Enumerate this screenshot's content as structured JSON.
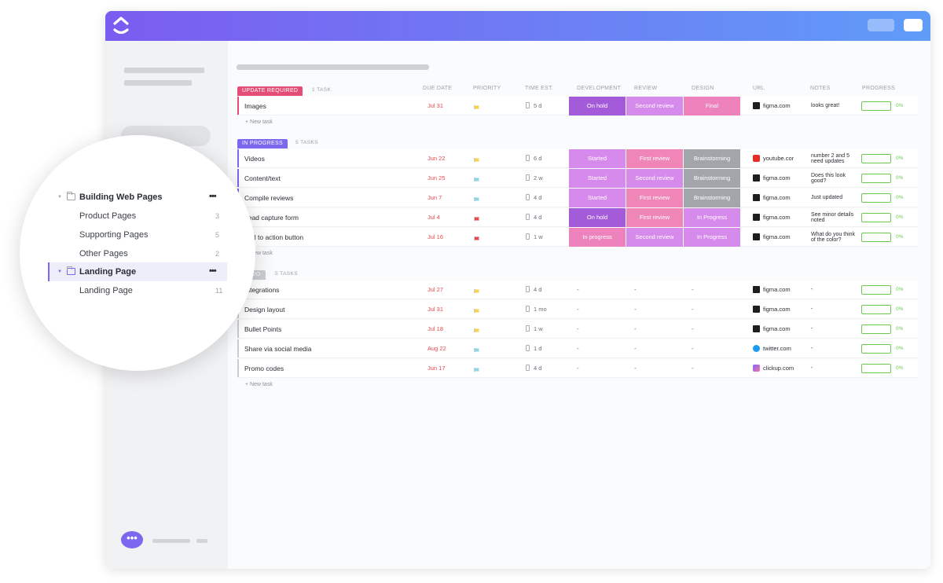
{
  "colors": {
    "topbar_gradient": [
      "#7b5cf0",
      "#5f9cf8"
    ],
    "update_required": "#e44d76",
    "in_progress": "#7b68ee",
    "progress_green": "#6bc950",
    "due_red": "#e5484d"
  },
  "columns": {
    "due_date": "DUE DATE",
    "priority": "PRIORITY",
    "time_est": "TIME EST.",
    "development": "DEVELOPMENT",
    "review": "REVIEW",
    "design": "DESIGN",
    "url": "URL",
    "notes": "NOTES",
    "progress": "PROGRESS"
  },
  "groups": [
    {
      "status": "UPDATE REQUIRED",
      "count": "1 TASK",
      "new_task": "+ New task",
      "tasks": [
        {
          "name": "Images",
          "due": "Jul 31",
          "flag": "yellow",
          "time": "5 d",
          "dev": "On hold",
          "review": "Second review",
          "design": "Final",
          "url": "figma.com",
          "url_icon": "figma-icon",
          "notes": "looks great!",
          "progress": "0%"
        }
      ]
    },
    {
      "status": "IN PROGRESS",
      "count": "5 TASKS",
      "new_task": "+ New task",
      "tasks": [
        {
          "name": "Videos",
          "due": "Jun 22",
          "flag": "yellow",
          "time": "6 d",
          "dev": "Started",
          "review": "First review",
          "design": "Brainstorming",
          "url": "youtube.cor",
          "url_icon": "youtube-icon",
          "notes": "number 2 and 5 need updates",
          "progress": "0%"
        },
        {
          "name": "Content/text",
          "due": "Jun 25",
          "flag": "blue",
          "time": "2 w",
          "dev": "Started",
          "review": "Second review",
          "design": "Brainstorming",
          "url": "figma.com",
          "url_icon": "figma-icon",
          "notes": "Does this look good?",
          "progress": "0%"
        },
        {
          "name": "Compile reviews",
          "due": "Jun 7",
          "flag": "blue",
          "time": "4 d",
          "dev": "Started",
          "review": "First review",
          "design": "Brainstorming",
          "url": "figma.com",
          "url_icon": "figma-icon",
          "notes": "Just updated",
          "progress": "0%"
        },
        {
          "name": "Lead capture form",
          "due": "Jul 4",
          "flag": "red",
          "time": "4 d",
          "dev": "On hold",
          "review": "First review",
          "design": "In Progress",
          "url": "figma.com",
          "url_icon": "figma-icon",
          "notes": "See minor details noted",
          "progress": "0%"
        },
        {
          "name": "Call to action button",
          "due": "Jul 16",
          "flag": "red",
          "time": "1 w",
          "dev": "In progress",
          "review": "Second review",
          "design": "In Progress",
          "url": "figma.com",
          "url_icon": "figma-icon",
          "notes": "What do you think of the color?",
          "progress": "0%"
        }
      ]
    },
    {
      "status": "TO DO",
      "count": "5 TASKS",
      "new_task": "+ New task",
      "tasks": [
        {
          "name": "Integrations",
          "due": "Jul 27",
          "flag": "yellow",
          "time": "4 d",
          "dev": "-",
          "review": "-",
          "design": "-",
          "url": "figma.com",
          "url_icon": "figma-icon",
          "notes": "-",
          "progress": "0%"
        },
        {
          "name": "Design layout",
          "due": "Jul 31",
          "flag": "yellow",
          "time": "1 mo",
          "dev": "-",
          "review": "-",
          "design": "-",
          "url": "figma.com",
          "url_icon": "figma-icon",
          "notes": "-",
          "progress": "0%"
        },
        {
          "name": "Bullet Points",
          "due": "Jul 18",
          "flag": "yellow",
          "time": "1 w",
          "dev": "-",
          "review": "-",
          "design": "-",
          "url": "figma.com",
          "url_icon": "figma-icon",
          "notes": "-",
          "progress": "0%"
        },
        {
          "name": "Share via social media",
          "due": "Aug 22",
          "flag": "blue",
          "time": "1 d",
          "dev": "-",
          "review": "-",
          "design": "-",
          "url": "twitter.com",
          "url_icon": "twitter-icon",
          "notes": "-",
          "progress": "0%"
        },
        {
          "name": "Promo codes",
          "due": "Jun 17",
          "flag": "blue",
          "time": "4 d",
          "dev": "-",
          "review": "-",
          "design": "-",
          "url": "clickup.com",
          "url_icon": "clickup-icon",
          "notes": "-",
          "progress": "0%"
        }
      ]
    }
  ],
  "lens": {
    "folder": {
      "label": "Building Web Pages"
    },
    "items": [
      {
        "label": "Product Pages",
        "count": "3"
      },
      {
        "label": "Supporting Pages",
        "count": "5"
      },
      {
        "label": "Other Pages",
        "count": "2"
      }
    ],
    "active_folder": {
      "label": "Landing Page"
    },
    "sub_item": {
      "label": "Landing Page",
      "count": "11"
    }
  },
  "chat_icon": "chat-bubble-icon"
}
